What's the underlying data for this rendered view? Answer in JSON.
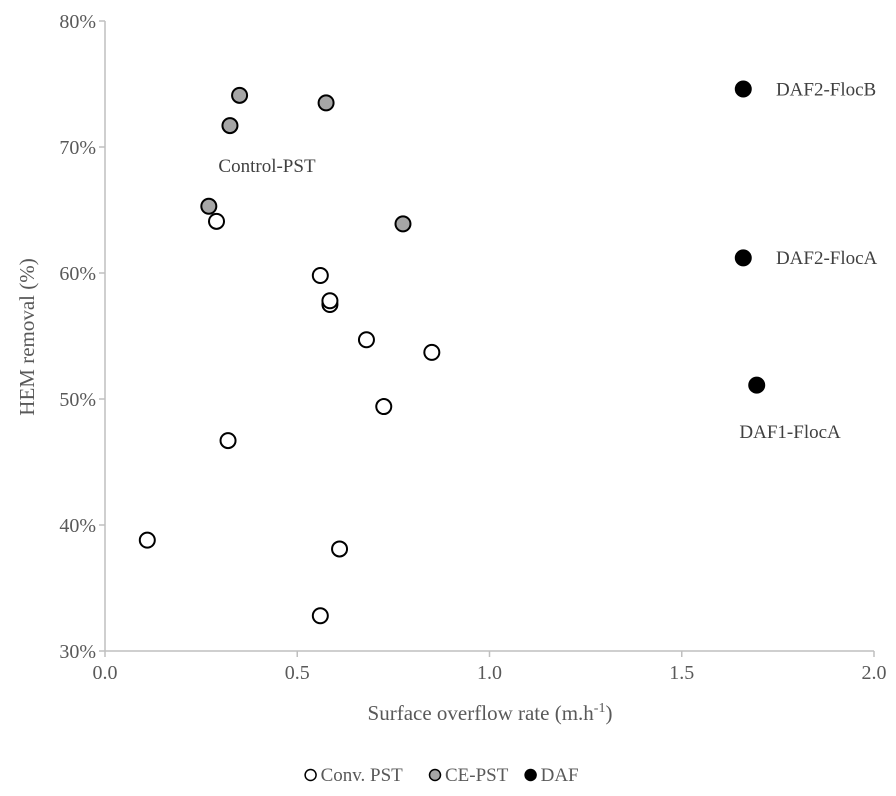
{
  "chart_data": {
    "type": "scatter",
    "xlabel": "Surface overflow rate (m.h",
    "xlabel_sup": "-1",
    "xlabel_end": ")",
    "ylabel": "HEM removal (%)",
    "xlim": [
      0.0,
      2.0
    ],
    "ylim": [
      0.3,
      0.8
    ],
    "x_ticks": [
      0.0,
      0.5,
      1.0,
      1.5,
      2.0
    ],
    "x_tick_labels": [
      "0.0",
      "0.5",
      "1.0",
      "1.5",
      "2.0"
    ],
    "y_ticks": [
      0.3,
      0.4,
      0.5,
      0.6,
      0.7,
      0.8
    ],
    "y_tick_labels": [
      "30%",
      "40%",
      "50%",
      "60%",
      "70%",
      "80%"
    ],
    "grid": false,
    "legend_position": "bottom",
    "series": [
      {
        "name": "Conv. PST",
        "fill": "#ffffff",
        "stroke": "#000000",
        "points": [
          {
            "x": 0.11,
            "y": 0.388
          },
          {
            "x": 0.29,
            "y": 0.641
          },
          {
            "x": 0.32,
            "y": 0.467
          },
          {
            "x": 0.56,
            "y": 0.598
          },
          {
            "x": 0.56,
            "y": 0.328
          },
          {
            "x": 0.585,
            "y": 0.575
          },
          {
            "x": 0.585,
            "y": 0.578
          },
          {
            "x": 0.61,
            "y": 0.381
          },
          {
            "x": 0.68,
            "y": 0.547
          },
          {
            "x": 0.725,
            "y": 0.494
          },
          {
            "x": 0.85,
            "y": 0.537
          }
        ]
      },
      {
        "name": "CE-PST",
        "fill": "#a6a6a6",
        "stroke": "#000000",
        "points": [
          {
            "x": 0.27,
            "y": 0.653
          },
          {
            "x": 0.325,
            "y": 0.717
          },
          {
            "x": 0.35,
            "y": 0.741
          },
          {
            "x": 0.575,
            "y": 0.735
          },
          {
            "x": 0.775,
            "y": 0.639
          }
        ]
      },
      {
        "name": "DAF",
        "fill": "#000000",
        "stroke": "#000000",
        "points": [
          {
            "x": 1.66,
            "y": 0.746
          },
          {
            "x": 1.66,
            "y": 0.612
          },
          {
            "x": 1.695,
            "y": 0.511
          }
        ]
      }
    ],
    "annotations": [
      {
        "text": "Control-PST",
        "x": 0.295,
        "y": 0.68
      },
      {
        "text": "DAF2-FlocB",
        "x": 1.745,
        "y": 0.741
      },
      {
        "text": "DAF2-FlocA",
        "x": 1.745,
        "y": 0.607
      },
      {
        "text": "DAF1-FlocA",
        "x": 1.65,
        "y": 0.469
      }
    ]
  }
}
